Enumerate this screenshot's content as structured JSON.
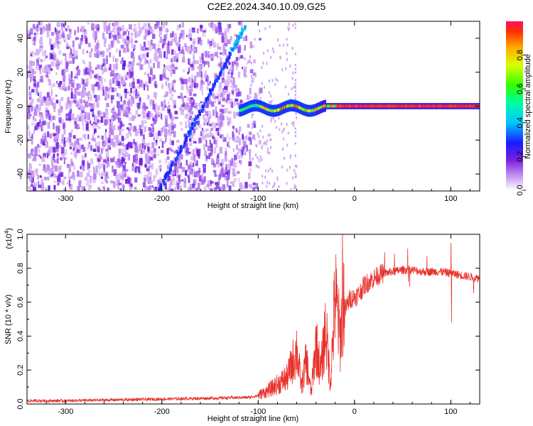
{
  "title": "C2E2.2024.340.10.09.G25",
  "colors": {
    "snr_line": "#e8302a",
    "spectrum_cmap": "rainbow (white-purple-blue-cyan-green-yellow-red)"
  },
  "chart_data": [
    {
      "type": "heatmap",
      "xlabel": "Height of straight line (km)",
      "ylabel": "Frequency (Hz)",
      "xlim": [
        -340,
        130
      ],
      "ylim": [
        -50,
        50
      ],
      "xticks": [
        "-300",
        "-200",
        "-100",
        "0",
        "100"
      ],
      "xtick_values": [
        -300,
        -200,
        -100,
        0,
        100
      ],
      "yticks": [
        "-40",
        "-20",
        "0",
        "20",
        "40"
      ],
      "ytick_values": [
        -40,
        -20,
        0,
        20,
        40
      ],
      "colorbar": {
        "label": "Normalized spectral amplitude",
        "range": [
          0,
          1
        ],
        "ticks": [
          "0.0",
          "0.2",
          "0.4",
          "0.6",
          "0.8"
        ],
        "tick_values": [
          0.0,
          0.2,
          0.4,
          0.6,
          0.8
        ]
      },
      "features": {
        "diagonal_trace": {
          "from": [
            -205,
            -50
          ],
          "to": [
            -115,
            48
          ]
        },
        "carrier_line": {
          "frequency": 0,
          "x_range": [
            -120,
            130
          ]
        }
      }
    },
    {
      "type": "line",
      "xlabel": "Height of straight line (km)",
      "ylabel": "SNR (10 * v/v)",
      "y_scale_label": "(x10",
      "y_scale_exp": "4",
      "y_scale_close": ")",
      "xlim": [
        -340,
        130
      ],
      "ylim": [
        0,
        1.0
      ],
      "xticks": [
        "-300",
        "-200",
        "-100",
        "0",
        "100"
      ],
      "xtick_values": [
        -300,
        -200,
        -100,
        0,
        100
      ],
      "yticks": [
        "0.0",
        "0.2",
        "0.4",
        "0.6",
        "0.8",
        "1.0"
      ],
      "ytick_values": [
        0.0,
        0.2,
        0.4,
        0.6,
        0.8,
        1.0
      ],
      "series": [
        {
          "x": [
            -340,
            -300,
            -250,
            -200,
            -150,
            -110,
            -100,
            -90,
            -80,
            -70,
            -65,
            -60,
            -55,
            -50,
            -45,
            -40,
            -35,
            -30,
            -25,
            -20,
            -15,
            -10,
            -5,
            0,
            5,
            10,
            15,
            20,
            25,
            30,
            40,
            50,
            60,
            70,
            80,
            90,
            100,
            110,
            120,
            130
          ],
          "y": [
            0.01,
            0.01,
            0.015,
            0.02,
            0.025,
            0.03,
            0.04,
            0.06,
            0.09,
            0.12,
            0.18,
            0.25,
            0.08,
            0.2,
            0.05,
            0.28,
            0.15,
            0.35,
            0.1,
            0.5,
            0.3,
            0.55,
            0.62,
            0.63,
            0.65,
            0.7,
            0.72,
            0.74,
            0.76,
            0.77,
            0.78,
            0.79,
            0.79,
            0.78,
            0.78,
            0.78,
            0.77,
            0.76,
            0.75,
            0.74
          ]
        }
      ]
    }
  ]
}
